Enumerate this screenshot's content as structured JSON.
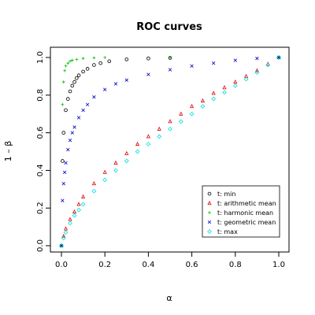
{
  "chart_data": {
    "type": "scatter",
    "title": "ROC curves",
    "xlabel": "α",
    "ylabel": "1 – β",
    "xlim": [
      0,
      1
    ],
    "ylim": [
      0,
      1
    ],
    "xticks": [
      "0.0",
      "0.2",
      "0.4",
      "0.6",
      "0.8",
      "1.0"
    ],
    "yticks": [
      "0.0",
      "0.2",
      "0.4",
      "0.6",
      "0.8",
      "1.0"
    ],
    "grid": false,
    "legend_position": "bottom-right",
    "series": [
      {
        "name": "t: min",
        "marker": "circle",
        "color": "#000000",
        "points": [
          [
            0.0,
            0.0
          ],
          [
            0.005,
            0.45
          ],
          [
            0.01,
            0.6
          ],
          [
            0.02,
            0.72
          ],
          [
            0.03,
            0.78
          ],
          [
            0.04,
            0.82
          ],
          [
            0.05,
            0.85
          ],
          [
            0.06,
            0.87
          ],
          [
            0.07,
            0.89
          ],
          [
            0.08,
            0.905
          ],
          [
            0.1,
            0.925
          ],
          [
            0.12,
            0.94
          ],
          [
            0.15,
            0.96
          ],
          [
            0.18,
            0.97
          ],
          [
            0.22,
            0.98
          ],
          [
            0.3,
            0.99
          ],
          [
            0.4,
            0.995
          ],
          [
            0.5,
            0.998
          ],
          [
            1.0,
            1.0
          ]
        ]
      },
      {
        "name": "t: arithmetic mean",
        "marker": "triangle",
        "color": "#dd0000",
        "points": [
          [
            0.0,
            0.0
          ],
          [
            0.01,
            0.05
          ],
          [
            0.02,
            0.09
          ],
          [
            0.04,
            0.14
          ],
          [
            0.06,
            0.18
          ],
          [
            0.08,
            0.22
          ],
          [
            0.1,
            0.26
          ],
          [
            0.15,
            0.33
          ],
          [
            0.2,
            0.39
          ],
          [
            0.25,
            0.44
          ],
          [
            0.3,
            0.49
          ],
          [
            0.35,
            0.54
          ],
          [
            0.4,
            0.58
          ],
          [
            0.45,
            0.62
          ],
          [
            0.5,
            0.66
          ],
          [
            0.55,
            0.7
          ],
          [
            0.6,
            0.74
          ],
          [
            0.65,
            0.77
          ],
          [
            0.7,
            0.81
          ],
          [
            0.75,
            0.84
          ],
          [
            0.8,
            0.87
          ],
          [
            0.85,
            0.9
          ],
          [
            0.9,
            0.93
          ],
          [
            0.95,
            0.965
          ],
          [
            1.0,
            1.0
          ]
        ]
      },
      {
        "name": "t: harmonic mean",
        "marker": "plus",
        "color": "#00bb00",
        "points": [
          [
            0.0,
            0.0
          ],
          [
            0.005,
            0.75
          ],
          [
            0.01,
            0.87
          ],
          [
            0.015,
            0.93
          ],
          [
            0.02,
            0.955
          ],
          [
            0.03,
            0.97
          ],
          [
            0.04,
            0.98
          ],
          [
            0.05,
            0.985
          ],
          [
            0.07,
            0.99
          ],
          [
            0.1,
            0.995
          ],
          [
            0.15,
            0.998
          ],
          [
            0.2,
            1.0
          ],
          [
            0.5,
            1.0
          ],
          [
            1.0,
            1.0
          ]
        ]
      },
      {
        "name": "t: geometric mean",
        "marker": "cross",
        "color": "#0000cc",
        "points": [
          [
            0.0,
            0.0
          ],
          [
            0.005,
            0.24
          ],
          [
            0.01,
            0.33
          ],
          [
            0.015,
            0.39
          ],
          [
            0.02,
            0.44
          ],
          [
            0.03,
            0.51
          ],
          [
            0.04,
            0.56
          ],
          [
            0.05,
            0.6
          ],
          [
            0.06,
            0.63
          ],
          [
            0.08,
            0.68
          ],
          [
            0.1,
            0.72
          ],
          [
            0.12,
            0.75
          ],
          [
            0.15,
            0.79
          ],
          [
            0.2,
            0.83
          ],
          [
            0.25,
            0.86
          ],
          [
            0.3,
            0.88
          ],
          [
            0.4,
            0.91
          ],
          [
            0.5,
            0.935
          ],
          [
            0.6,
            0.955
          ],
          [
            0.7,
            0.97
          ],
          [
            0.8,
            0.985
          ],
          [
            0.9,
            0.995
          ],
          [
            1.0,
            1.0
          ]
        ]
      },
      {
        "name": "t: max",
        "marker": "diamond",
        "color": "#00dddd",
        "points": [
          [
            0.0,
            0.0
          ],
          [
            0.01,
            0.04
          ],
          [
            0.02,
            0.07
          ],
          [
            0.04,
            0.12
          ],
          [
            0.06,
            0.16
          ],
          [
            0.08,
            0.19
          ],
          [
            0.1,
            0.22
          ],
          [
            0.15,
            0.29
          ],
          [
            0.2,
            0.35
          ],
          [
            0.25,
            0.4
          ],
          [
            0.3,
            0.45
          ],
          [
            0.35,
            0.5
          ],
          [
            0.4,
            0.54
          ],
          [
            0.45,
            0.58
          ],
          [
            0.5,
            0.62
          ],
          [
            0.55,
            0.66
          ],
          [
            0.6,
            0.7
          ],
          [
            0.65,
            0.74
          ],
          [
            0.7,
            0.78
          ],
          [
            0.75,
            0.815
          ],
          [
            0.8,
            0.85
          ],
          [
            0.85,
            0.885
          ],
          [
            0.9,
            0.92
          ],
          [
            0.95,
            0.96
          ],
          [
            1.0,
            1.0
          ]
        ]
      }
    ]
  }
}
